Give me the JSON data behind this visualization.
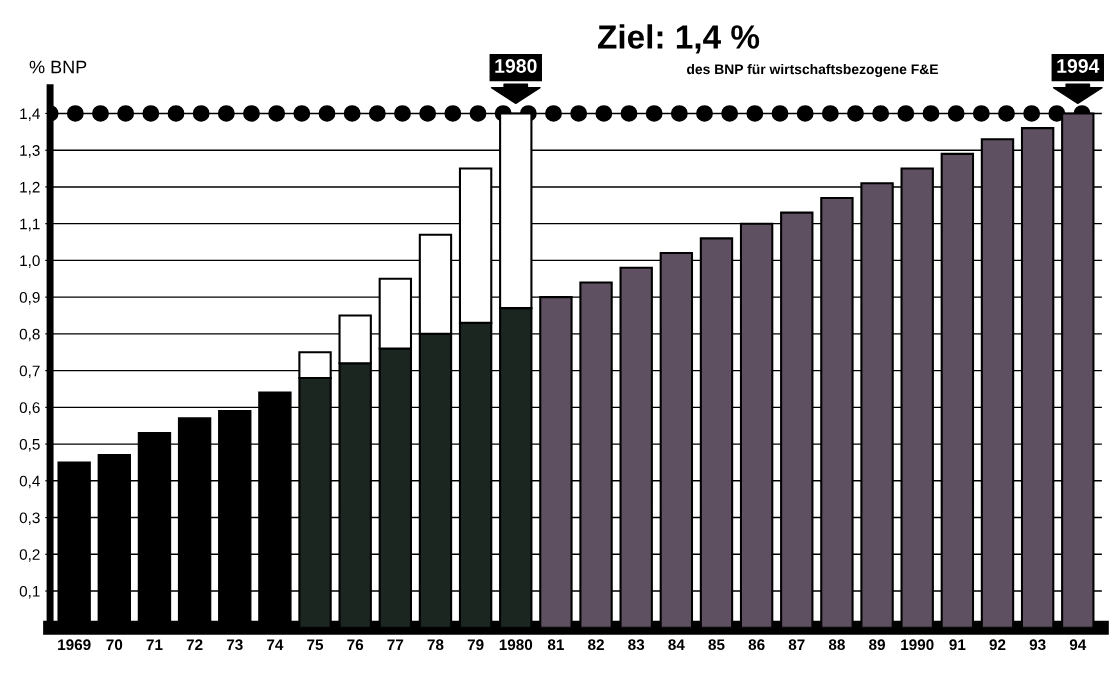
{
  "chart_data": {
    "type": "bar",
    "stacked": true,
    "ylabel": "% BNP",
    "categories": [
      "1969",
      "70",
      "71",
      "72",
      "73",
      "74",
      "75",
      "76",
      "77",
      "78",
      "79",
      "1980",
      "81",
      "82",
      "83",
      "84",
      "85",
      "86",
      "87",
      "88",
      "89",
      "1990",
      "91",
      "92",
      "93",
      "94"
    ],
    "series": [
      {
        "colors": [
          "#000000",
          "#000000",
          "#000000",
          "#000000",
          "#000000",
          "#000000",
          "#1c2620",
          "#1c2620",
          "#1c2620",
          "#1c2620",
          "#1c2620",
          "#1c2620",
          null,
          null,
          null,
          null,
          null,
          null,
          null,
          null,
          null,
          null,
          null,
          null,
          null,
          null
        ],
        "values": [
          0.45,
          0.47,
          0.53,
          0.57,
          0.59,
          0.64,
          0.68,
          0.72,
          0.76,
          0.8,
          0.83,
          0.87,
          null,
          null,
          null,
          null,
          null,
          null,
          null,
          null,
          null,
          null,
          null,
          null,
          null,
          null
        ]
      },
      {
        "color": "#ffffff",
        "values": [
          null,
          null,
          null,
          null,
          null,
          null,
          0.07,
          0.13,
          0.19,
          0.27,
          0.42,
          0.53,
          null,
          null,
          null,
          null,
          null,
          null,
          null,
          null,
          null,
          null,
          null,
          null,
          null,
          null
        ]
      },
      {
        "color": "#5e5060",
        "values": [
          null,
          null,
          null,
          null,
          null,
          null,
          null,
          null,
          null,
          null,
          null,
          null,
          0.9,
          0.94,
          0.98,
          1.02,
          1.06,
          1.1,
          1.13,
          1.17,
          1.21,
          1.25,
          1.29,
          1.33,
          1.36,
          1.4
        ]
      }
    ],
    "ylim": [
      0,
      1.47
    ],
    "yticks": [
      {
        "value": 0.1,
        "label": "0,1"
      },
      {
        "value": 0.2,
        "label": "0,2"
      },
      {
        "value": 0.3,
        "label": "0,3"
      },
      {
        "value": 0.4,
        "label": "0,4"
      },
      {
        "value": 0.5,
        "label": "0,5"
      },
      {
        "value": 0.6,
        "label": "0,6"
      },
      {
        "value": 0.7,
        "label": "0,7"
      },
      {
        "value": 0.8,
        "label": "0,8"
      },
      {
        "value": 0.9,
        "label": "0,9"
      },
      {
        "value": 1.0,
        "label": "1,0"
      },
      {
        "value": 1.1,
        "label": "1,1"
      },
      {
        "value": 1.2,
        "label": "1,2"
      },
      {
        "value": 1.3,
        "label": "1,3"
      },
      {
        "value": 1.4,
        "label": "1,4"
      }
    ],
    "grid": "y",
    "ref_lines": [
      {
        "axis": "y",
        "value": 1.4,
        "label": "Ziel: 1,4 %",
        "line_style": "dotted",
        "color": "#000000"
      }
    ],
    "annotations": [
      "des BNP für wirtschaftsbezogene F&E",
      {
        "text": "1980",
        "x": "1980",
        "y": 1.4
      },
      {
        "text": "1994",
        "x": "94",
        "y": 1.4
      }
    ],
    "legend": false
  }
}
